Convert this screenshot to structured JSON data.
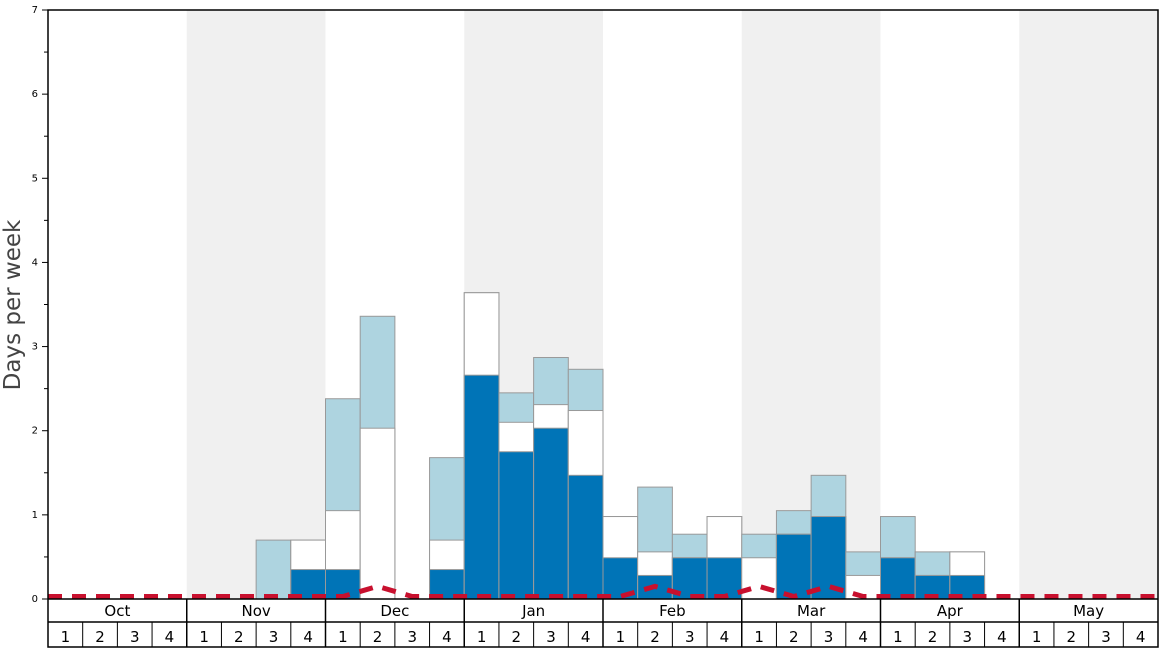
{
  "chart_data": {
    "type": "bar",
    "ylabel": "Days per week",
    "ylim": [
      0,
      7
    ],
    "y_ticks": [
      0,
      1,
      2,
      3,
      4,
      5,
      6,
      7
    ],
    "months": [
      "Oct",
      "Nov",
      "Dec",
      "Jan",
      "Feb",
      "Mar",
      "Apr",
      "May"
    ],
    "week_labels": [
      "1",
      "2",
      "3",
      "4"
    ],
    "band_colors": [
      "#ffffff",
      "#f0f0f0"
    ],
    "colors": {
      "dark": "#0074b7",
      "light": "#aed4e0",
      "white": "#ffffff",
      "dashed_line": "#c8102e"
    },
    "weeks": [
      {
        "month": "Oct",
        "week": 1,
        "dark": 0,
        "white_top": 0,
        "light_top": 0
      },
      {
        "month": "Oct",
        "week": 2,
        "dark": 0,
        "white_top": 0,
        "light_top": 0
      },
      {
        "month": "Oct",
        "week": 3,
        "dark": 0,
        "white_top": 0,
        "light_top": 0
      },
      {
        "month": "Oct",
        "week": 4,
        "dark": 0,
        "white_top": 0,
        "light_top": 0
      },
      {
        "month": "Nov",
        "week": 1,
        "dark": 0,
        "white_top": 0,
        "light_top": 0
      },
      {
        "month": "Nov",
        "week": 2,
        "dark": 0,
        "white_top": 0,
        "light_top": 0
      },
      {
        "month": "Nov",
        "week": 3,
        "dark": 0,
        "white_top": 0,
        "light_top": 0.7
      },
      {
        "month": "Nov",
        "week": 4,
        "dark": 0.35,
        "white_top": 0.7,
        "light_top": 0.7
      },
      {
        "month": "Dec",
        "week": 1,
        "dark": 0.35,
        "white_top": 1.05,
        "light_top": 2.38
      },
      {
        "month": "Dec",
        "week": 2,
        "dark": 0,
        "white_top": 2.03,
        "light_top": 3.36
      },
      {
        "month": "Dec",
        "week": 3,
        "dark": 0,
        "white_top": 0,
        "light_top": 0
      },
      {
        "month": "Dec",
        "week": 4,
        "dark": 0.35,
        "white_top": 0.7,
        "light_top": 1.68
      },
      {
        "month": "Jan",
        "week": 1,
        "dark": 2.66,
        "white_top": 3.64,
        "light_top": 3.64
      },
      {
        "month": "Jan",
        "week": 2,
        "dark": 1.75,
        "white_top": 2.1,
        "light_top": 2.45
      },
      {
        "month": "Jan",
        "week": 3,
        "dark": 2.03,
        "white_top": 2.31,
        "light_top": 2.87
      },
      {
        "month": "Jan",
        "week": 4,
        "dark": 1.47,
        "white_top": 2.24,
        "light_top": 2.73
      },
      {
        "month": "Feb",
        "week": 1,
        "dark": 0.49,
        "white_top": 0.98,
        "light_top": 0.98
      },
      {
        "month": "Feb",
        "week": 2,
        "dark": 0.28,
        "white_top": 0.56,
        "light_top": 1.33
      },
      {
        "month": "Feb",
        "week": 3,
        "dark": 0.49,
        "white_top": 0.49,
        "light_top": 0.77
      },
      {
        "month": "Feb",
        "week": 4,
        "dark": 0.49,
        "white_top": 0.98,
        "light_top": 0.98
      },
      {
        "month": "Mar",
        "week": 1,
        "dark": 0,
        "white_top": 0.49,
        "light_top": 0.77
      },
      {
        "month": "Mar",
        "week": 2,
        "dark": 0.77,
        "white_top": 0.77,
        "light_top": 1.05
      },
      {
        "month": "Mar",
        "week": 3,
        "dark": 0.98,
        "white_top": 0.98,
        "light_top": 1.47
      },
      {
        "month": "Mar",
        "week": 4,
        "dark": 0,
        "white_top": 0.28,
        "light_top": 0.56
      },
      {
        "month": "Apr",
        "week": 1,
        "dark": 0.49,
        "white_top": 0.49,
        "light_top": 0.98
      },
      {
        "month": "Apr",
        "week": 2,
        "dark": 0.28,
        "white_top": 0.28,
        "light_top": 0.56
      },
      {
        "month": "Apr",
        "week": 3,
        "dark": 0.28,
        "white_top": 0.56,
        "light_top": 0.56
      },
      {
        "month": "Apr",
        "week": 4,
        "dark": 0,
        "white_top": 0,
        "light_top": 0
      },
      {
        "month": "May",
        "week": 1,
        "dark": 0,
        "white_top": 0,
        "light_top": 0
      },
      {
        "month": "May",
        "week": 2,
        "dark": 0,
        "white_top": 0,
        "light_top": 0
      },
      {
        "month": "May",
        "week": 3,
        "dark": 0,
        "white_top": 0,
        "light_top": 0
      },
      {
        "month": "May",
        "week": 4,
        "dark": 0,
        "white_top": 0,
        "light_top": 0
      }
    ],
    "dashed_line": [
      0.03,
      0.03,
      0.03,
      0.03,
      0.03,
      0.03,
      0.03,
      0.03,
      0.03,
      0.15,
      0.03,
      0.03,
      0.03,
      0.03,
      0.03,
      0.03,
      0.03,
      0.15,
      0.03,
      0.03,
      0.15,
      0.03,
      0.15,
      0.03,
      0.03,
      0.03,
      0.03,
      0.03,
      0.03,
      0.03,
      0.03,
      0.03
    ]
  }
}
